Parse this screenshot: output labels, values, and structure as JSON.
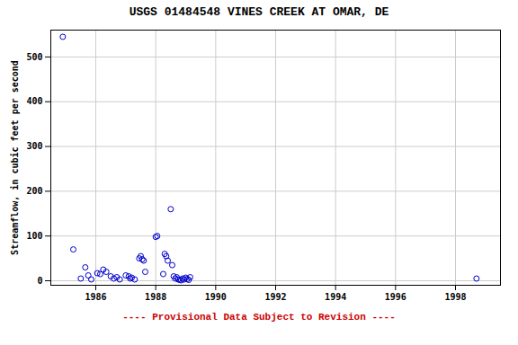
{
  "chart_data": {
    "type": "scatter",
    "title": "USGS 01484548 VINES CREEK AT OMAR, DE",
    "ylabel": "Streamflow, in cubic feet per second",
    "x": [
      1984.9,
      1985.25,
      1985.5,
      1985.65,
      1985.75,
      1985.85,
      1986.05,
      1986.15,
      1986.25,
      1986.35,
      1986.5,
      1986.6,
      1986.7,
      1986.8,
      1987.0,
      1987.1,
      1987.15,
      1987.2,
      1987.3,
      1987.45,
      1987.5,
      1987.55,
      1987.6,
      1987.65,
      1988.0,
      1988.05,
      1988.25,
      1988.3,
      1988.35,
      1988.4,
      1988.5,
      1988.55,
      1988.6,
      1988.65,
      1988.7,
      1988.75,
      1988.8,
      1988.85,
      1988.9,
      1988.95,
      1989.0,
      1989.05,
      1989.1,
      1989.15,
      1998.7
    ],
    "values": [
      545,
      70,
      5,
      30,
      12,
      3,
      17,
      15,
      25,
      20,
      10,
      5,
      8,
      3,
      12,
      10,
      5,
      7,
      3,
      50,
      55,
      48,
      45,
      20,
      98,
      100,
      15,
      60,
      55,
      45,
      160,
      35,
      10,
      5,
      8,
      3,
      2,
      1,
      5,
      3,
      7,
      4,
      2,
      8,
      5
    ],
    "color": "#0000cc",
    "marker": "open_circle",
    "xlim": [
      1984.5,
      1999.5
    ],
    "ylim": [
      -10,
      560
    ],
    "xticks": [
      1986,
      1988,
      1990,
      1992,
      1994,
      1996,
      1998
    ],
    "yticks": [
      0,
      100,
      200,
      300,
      400,
      500
    ],
    "grid": true,
    "annotations": [
      {
        "text": "---- Provisional Data Subject to Revision ----",
        "color": "#cc0000"
      }
    ]
  }
}
